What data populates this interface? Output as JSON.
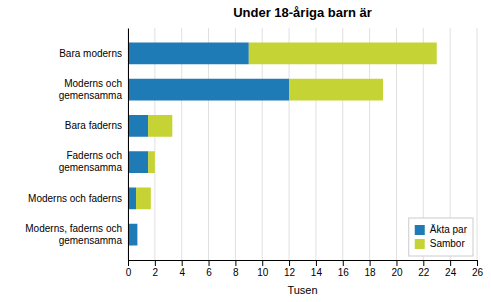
{
  "chart_data": {
    "type": "bar",
    "orientation": "horizontal",
    "stacked": true,
    "title": "Under 18-åriga barn är",
    "xlabel": "Tusen",
    "categories": [
      "Bara moderns",
      "Moderns och\ngemensamma",
      "Bara faderns",
      "Faderns och\ngemensamma",
      "Moderns och faderns",
      "Moderns, faderns och\ngemensamma"
    ],
    "series": [
      {
        "name": "Äkta par",
        "color": "#1f7bb5",
        "values": [
          9.0,
          12.0,
          1.5,
          1.5,
          0.6,
          0.7
        ]
      },
      {
        "name": "Sambor",
        "color": "#c5d334",
        "values": [
          14.0,
          7.0,
          1.8,
          0.5,
          1.1,
          0.0
        ]
      }
    ],
    "xlim": [
      0,
      26
    ],
    "xticks": [
      0,
      2,
      4,
      6,
      8,
      10,
      12,
      14,
      16,
      18,
      20,
      22,
      24,
      26
    ],
    "grid": true,
    "legend": "lower right"
  }
}
